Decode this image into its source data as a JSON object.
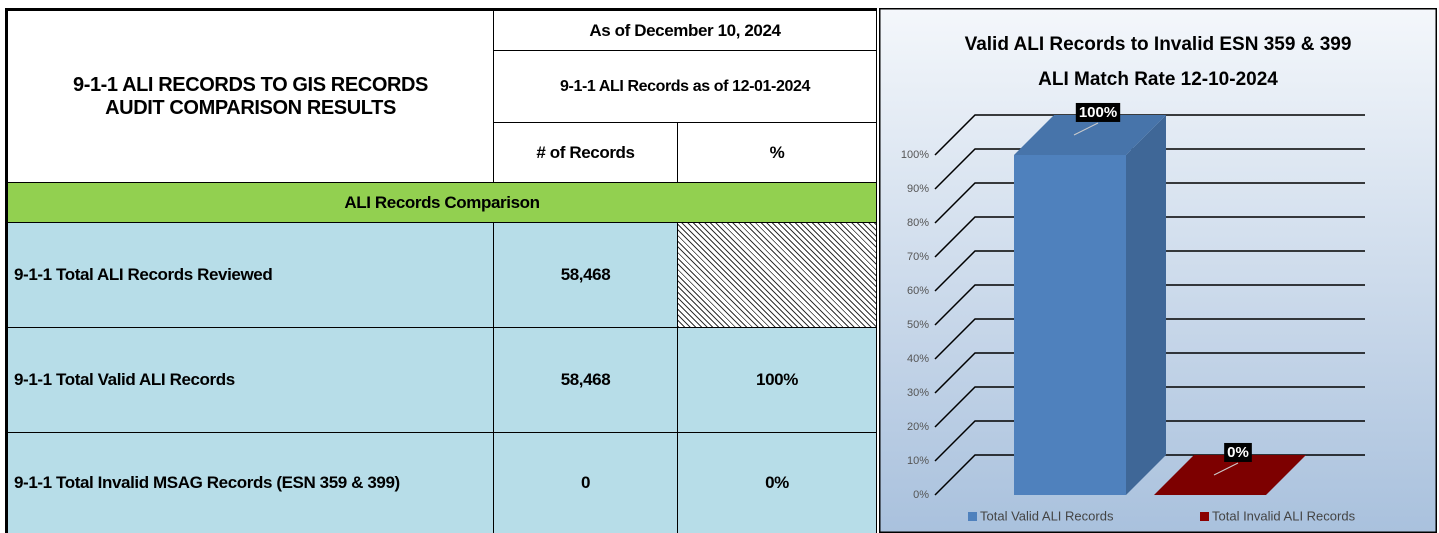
{
  "table": {
    "title_lines": [
      "9-1-1 ALI RECORDS TO GIS RECORDS",
      "AUDIT COMPARISON RESULTS"
    ],
    "as_of": "As of December 10, 2024",
    "records_as_of": "9-1-1 ALI Records as of 12-01-2024",
    "columns": [
      "# of Records",
      "%"
    ],
    "section": "ALI Records Comparison",
    "rows": [
      {
        "label": "9-1-1 Total ALI Records Reviewed",
        "records": "58,468"
      },
      {
        "label": "9-1-1 Total Valid ALI Records",
        "records": "58,468",
        "percent": "100%"
      },
      {
        "label": "9-1-1 Total Invalid MSAG Records (ESN 359 & 399)",
        "records": "0",
        "percent": "0%"
      }
    ]
  },
  "chart_data": {
    "type": "bar",
    "title": "Valid ALI Records to Invalid ESN 359 & 399",
    "subtitle": "ALI Match Rate 12-10-2024",
    "categories": [
      "Total Valid ALI Records",
      "Total Invalid ALI Records"
    ],
    "values": [
      100,
      0
    ],
    "value_labels": [
      "100%",
      "0%"
    ],
    "colors": [
      "#4f81bd",
      "#8b0000"
    ],
    "ylim": [
      0,
      100
    ],
    "yticks": [
      {
        "value": 0,
        "label": "0%"
      },
      {
        "value": 10,
        "label": "10%"
      },
      {
        "value": 20,
        "label": "20%"
      },
      {
        "value": 30,
        "label": "30%"
      },
      {
        "value": 40,
        "label": "40%"
      },
      {
        "value": 50,
        "label": "50%"
      },
      {
        "value": 60,
        "label": "60%"
      },
      {
        "value": 70,
        "label": "70%"
      },
      {
        "value": 80,
        "label": "80%"
      },
      {
        "value": 90,
        "label": "90%"
      },
      {
        "value": 100,
        "label": "100%"
      }
    ],
    "grid": true,
    "legend": "bottom"
  }
}
